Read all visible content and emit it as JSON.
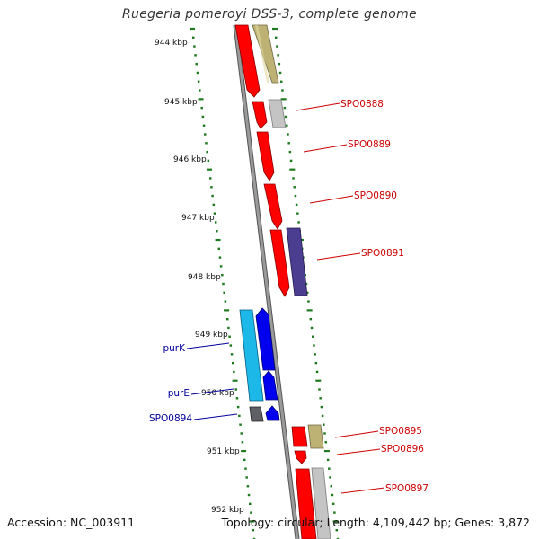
{
  "title": "Ruegeria pomeroyi DSS-3, complete genome",
  "footer": {
    "accession": "Accession: NC_003911",
    "summary": "Topology: circular; Length: 4,109,442 bp; Genes: 3,872"
  },
  "colors": {
    "backbone": "#8a8a8a",
    "tick": "#1e7a1e",
    "red_feature": "#ff0000",
    "olive_feature": "#bdb273",
    "grey_feature": "#c4c4c4",
    "navy_feature": "#4b3d8f",
    "blue_feature": "#0000ee",
    "cyan_feature": "#1cb8e8",
    "dark_grey_feature": "#5f5f66",
    "right_label": "#cc0000",
    "left_label": "#00009c"
  },
  "kbp_labels": [
    "944 kbp",
    "945 kbp",
    "946 kbp",
    "947 kbp",
    "948 kbp",
    "949 kbp",
    "950 kbp",
    "951 kbp",
    "952 kbp"
  ],
  "gene_labels": {
    "right": [
      "SPO0888",
      "SPO0889",
      "SPO0890",
      "SPO0891",
      "SPO0895",
      "SPO0896",
      "SPO0897"
    ],
    "left": [
      "purK",
      "purE",
      "SPO0894"
    ]
  }
}
